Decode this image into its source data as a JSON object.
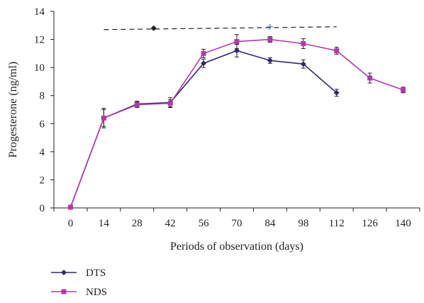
{
  "chart_data": {
    "type": "line",
    "title": "",
    "xlabel": "Periods of observation (days)",
    "ylabel": "Progesterone (ng/ml)",
    "categories": [
      "0",
      "14",
      "28",
      "42",
      "56",
      "70",
      "84",
      "98",
      "112",
      "126",
      "140"
    ],
    "ylim": [
      0,
      14
    ],
    "yticks": [
      0,
      2,
      4,
      6,
      8,
      10,
      12,
      14
    ],
    "grid": false,
    "legend_position": "bottom-left",
    "series": [
      {
        "name": "DTS",
        "color": "#2e2a6e",
        "marker": "diamond",
        "values": [
          0.05,
          6.4,
          7.4,
          7.5,
          10.3,
          11.2,
          10.5,
          10.25,
          8.2,
          null,
          null
        ],
        "errors": [
          0,
          0.7,
          0.2,
          0.35,
          0.3,
          0.45,
          0.2,
          0.3,
          0.25,
          null,
          null
        ]
      },
      {
        "name": "NDS",
        "color": "#b23aa8",
        "marker": "square",
        "values": [
          0.05,
          6.4,
          7.35,
          7.45,
          11.0,
          11.85,
          12.0,
          11.7,
          11.2,
          9.25,
          8.4
        ],
        "errors": [
          0,
          0.6,
          0.2,
          0.25,
          0.3,
          0.5,
          0.2,
          0.35,
          0.25,
          0.35,
          0.2
        ]
      }
    ],
    "annotations": [
      {
        "type": "dashed-line",
        "x": [
          14,
          112
        ],
        "y": [
          12.7,
          12.9
        ],
        "color": "#231f20"
      },
      {
        "type": "marker",
        "symbol": "diamond",
        "x": 35,
        "y": 12.8,
        "color": "#231f20"
      },
      {
        "type": "marker",
        "symbol": "plus",
        "x": 84,
        "y": 12.9,
        "color": "#4a6fb0"
      }
    ]
  }
}
